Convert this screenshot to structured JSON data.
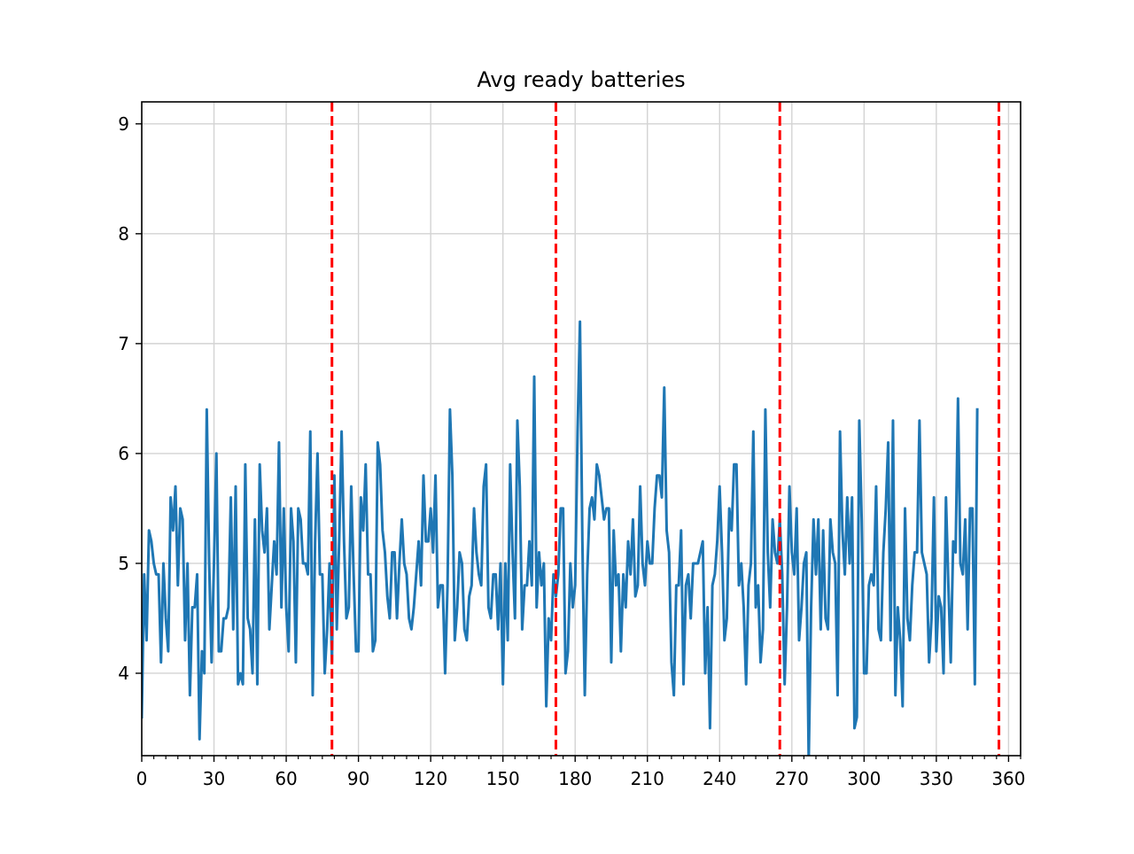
{
  "chart_data": {
    "type": "line",
    "title": "Avg ready batteries",
    "xlabel": "",
    "ylabel": "",
    "xlim": [
      0,
      365
    ],
    "ylim": [
      3.25,
      9.2
    ],
    "x_ticks": [
      0,
      30,
      60,
      90,
      120,
      150,
      180,
      210,
      240,
      270,
      300,
      330,
      360
    ],
    "y_ticks": [
      4,
      5,
      6,
      7,
      8,
      9
    ],
    "x_minor_step": 5,
    "grid": true,
    "series": [
      {
        "color": "#1f77b4",
        "x_start": 0,
        "x_step": 1,
        "values": [
          3.6,
          4.9,
          4.3,
          5.3,
          5.2,
          5.0,
          4.9,
          4.9,
          4.1,
          5.0,
          4.5,
          4.2,
          5.6,
          5.3,
          5.7,
          4.8,
          5.5,
          5.4,
          4.3,
          5.0,
          3.8,
          4.6,
          4.6,
          4.9,
          3.4,
          4.2,
          4.0,
          6.4,
          5.0,
          4.1,
          5.0,
          6.0,
          4.2,
          4.2,
          4.5,
          4.5,
          4.6,
          5.6,
          4.4,
          5.7,
          3.9,
          4.0,
          3.9,
          5.9,
          4.5,
          4.4,
          4.0,
          5.4,
          3.9,
          5.9,
          5.3,
          5.1,
          5.5,
          4.4,
          4.8,
          5.2,
          4.9,
          6.1,
          4.6,
          5.5,
          4.6,
          4.2,
          5.5,
          5.2,
          4.1,
          5.5,
          5.4,
          5.0,
          5.0,
          4.9,
          6.2,
          3.8,
          5.2,
          6.0,
          4.9,
          4.9,
          4.0,
          4.4,
          5.0,
          4.1,
          5.8,
          4.4,
          5.2,
          6.2,
          5.2,
          4.5,
          4.6,
          5.7,
          4.9,
          4.2,
          4.2,
          5.6,
          5.3,
          5.9,
          4.9,
          4.9,
          4.2,
          4.3,
          6.1,
          5.9,
          5.3,
          5.1,
          4.7,
          4.5,
          5.1,
          5.1,
          4.5,
          5.0,
          5.4,
          5.0,
          4.9,
          4.5,
          4.4,
          4.6,
          4.9,
          5.2,
          4.8,
          5.8,
          5.2,
          5.2,
          5.5,
          5.1,
          5.8,
          4.6,
          4.8,
          4.8,
          4.0,
          4.8,
          6.4,
          5.8,
          4.3,
          4.6,
          5.1,
          5.0,
          4.4,
          4.3,
          4.7,
          4.8,
          5.5,
          5.1,
          4.9,
          4.8,
          5.7,
          5.9,
          4.6,
          4.5,
          4.9,
          4.9,
          4.4,
          5.0,
          3.9,
          5.0,
          4.3,
          5.9,
          5.1,
          4.5,
          6.3,
          5.7,
          4.4,
          4.8,
          4.8,
          5.2,
          4.8,
          6.7,
          4.6,
          5.1,
          4.8,
          5.0,
          3.7,
          4.5,
          4.3,
          4.9,
          4.7,
          4.9,
          5.5,
          5.5,
          4.0,
          4.2,
          5.0,
          4.6,
          4.8,
          6.2,
          7.2,
          5.2,
          3.8,
          4.9,
          5.5,
          5.6,
          5.4,
          5.9,
          5.8,
          5.6,
          5.4,
          5.5,
          5.5,
          4.1,
          5.3,
          4.8,
          4.9,
          4.2,
          4.9,
          4.6,
          5.2,
          4.9,
          5.4,
          4.7,
          4.8,
          5.7,
          5.0,
          4.8,
          5.2,
          5.0,
          5.0,
          5.5,
          5.8,
          5.8,
          5.6,
          6.6,
          5.3,
          5.1,
          4.1,
          3.8,
          4.8,
          4.8,
          5.3,
          3.9,
          4.8,
          4.9,
          4.5,
          5.0,
          5.0,
          5.0,
          5.1,
          5.2,
          4.0,
          4.6,
          3.5,
          4.8,
          4.9,
          5.2,
          5.7,
          5.1,
          4.3,
          4.5,
          5.5,
          5.3,
          5.9,
          5.9,
          4.8,
          5.0,
          4.6,
          3.9,
          4.8,
          5.0,
          6.2,
          4.6,
          4.8,
          4.1,
          4.4,
          6.4,
          5.1,
          4.6,
          5.4,
          5.1,
          5.0,
          5.4,
          4.9,
          3.9,
          4.6,
          5.7,
          5.1,
          4.9,
          5.5,
          4.3,
          4.6,
          5.0,
          5.1,
          3.2,
          4.6,
          5.4,
          4.9,
          5.4,
          4.4,
          5.3,
          4.5,
          4.4,
          5.4,
          5.1,
          5.0,
          3.8,
          6.2,
          5.3,
          4.9,
          5.6,
          5.0,
          5.6,
          3.5,
          3.6,
          6.3,
          5.4,
          4.0,
          4.0,
          4.8,
          4.9,
          4.8,
          5.7,
          4.4,
          4.3,
          5.1,
          5.5,
          6.1,
          4.3,
          6.3,
          3.8,
          4.6,
          4.3,
          3.7,
          5.5,
          4.5,
          4.3,
          4.8,
          5.1,
          5.1,
          6.3,
          5.1,
          5.0,
          4.9,
          4.1,
          4.5,
          5.6,
          4.2,
          4.7,
          4.6,
          4.0,
          5.6,
          4.8,
          4.1,
          5.2,
          5.1,
          6.5,
          5.0,
          4.9,
          5.4,
          4.4,
          5.5,
          5.5,
          3.9,
          6.4
        ]
      }
    ],
    "vlines": [
      {
        "x": 79,
        "color": "#ff0000",
        "style": "dashed"
      },
      {
        "x": 172,
        "color": "#ff0000",
        "style": "dashed"
      },
      {
        "x": 265,
        "color": "#ff0000",
        "style": "dashed"
      },
      {
        "x": 356,
        "color": "#ff0000",
        "style": "dashed"
      }
    ]
  }
}
